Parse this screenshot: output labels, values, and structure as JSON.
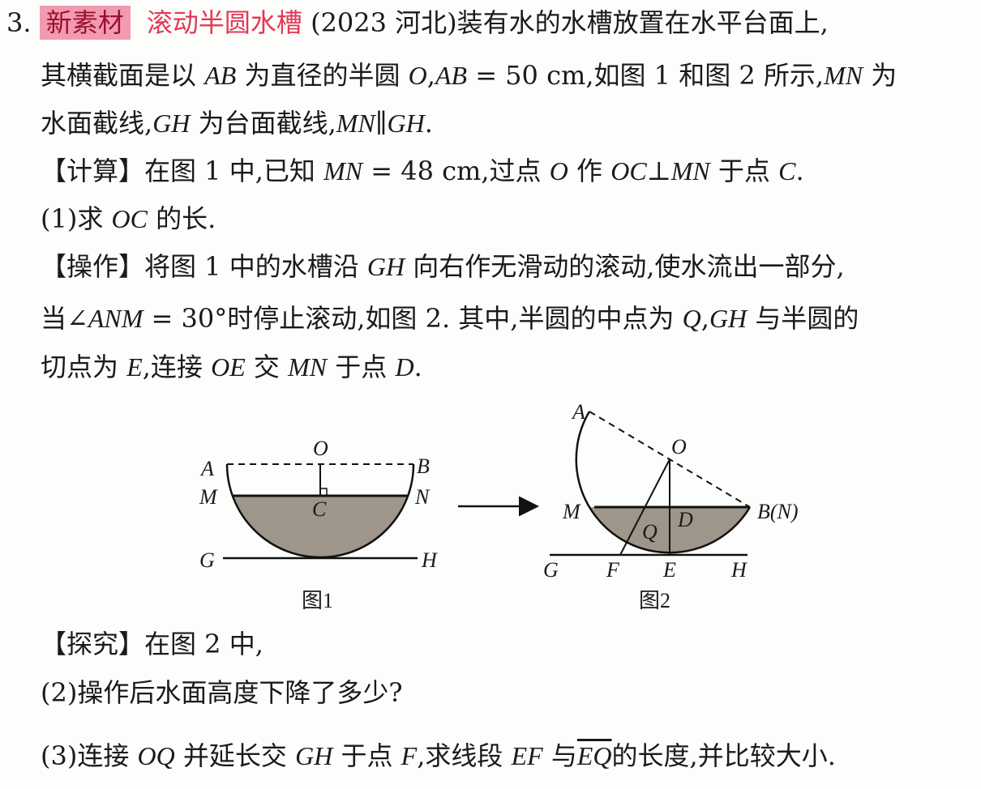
{
  "problem": {
    "number": "3.",
    "tag": "新素材",
    "topic": "滚动半圆水槽",
    "lines": [
      [
        {
          "t": " (2023 河北)装有水的水槽放置在水平台面上,"
        }
      ],
      [
        {
          "t": "其横截面是以 "
        },
        {
          "t": "AB",
          "i": true
        },
        {
          "t": " 为直径的半圆 "
        },
        {
          "t": "O",
          "i": true
        },
        {
          "t": ","
        },
        {
          "t": "AB",
          "i": true
        },
        {
          "t": " = 50 cm,如图 1 和图 2 所示,"
        },
        {
          "t": "MN",
          "i": true
        },
        {
          "t": " 为"
        }
      ],
      [
        {
          "t": "水面截线,"
        },
        {
          "t": "GH",
          "i": true
        },
        {
          "t": " 为台面截线,"
        },
        {
          "t": "MN",
          "i": true
        },
        {
          "t": "∥"
        },
        {
          "t": "GH",
          "i": true
        },
        {
          "t": "."
        }
      ],
      [
        {
          "t": "【计算】在图 1 中,已知 "
        },
        {
          "t": "MN",
          "i": true
        },
        {
          "t": " = 48 cm,过点 "
        },
        {
          "t": "O",
          "i": true
        },
        {
          "t": " 作 "
        },
        {
          "t": "OC",
          "i": true
        },
        {
          "t": "⊥"
        },
        {
          "t": "MN",
          "i": true
        },
        {
          "t": " 于点 "
        },
        {
          "t": "C",
          "i": true
        },
        {
          "t": "."
        }
      ],
      [
        {
          "t": "(1)求 "
        },
        {
          "t": "OC",
          "i": true
        },
        {
          "t": " 的长."
        }
      ],
      [
        {
          "t": "【操作】将图 1 中的水槽沿 "
        },
        {
          "t": "GH",
          "i": true
        },
        {
          "t": " 向右作无滑动的滚动,使水流出一部分,"
        }
      ],
      [
        {
          "t": "当∠"
        },
        {
          "t": "ANM",
          "i": true
        },
        {
          "t": " = 30°时停止滚动,如图 2. 其中,半圆的中点为 "
        },
        {
          "t": "Q",
          "i": true
        },
        {
          "t": ","
        },
        {
          "t": "GH",
          "i": true
        },
        {
          "t": " 与半圆的"
        }
      ],
      [
        {
          "t": "切点为 "
        },
        {
          "t": "E",
          "i": true
        },
        {
          "t": ",连接 "
        },
        {
          "t": "OE",
          "i": true
        },
        {
          "t": " 交 "
        },
        {
          "t": "MN",
          "i": true
        },
        {
          "t": " 于点 "
        },
        {
          "t": "D",
          "i": true
        },
        {
          "t": "."
        }
      ],
      [
        {
          "t": "【探究】在图 2 中,"
        }
      ],
      [
        {
          "t": "(2)操作后水面高度下降了多少?"
        }
      ],
      [
        {
          "t": "(3)连接 "
        },
        {
          "t": "OQ",
          "i": true
        },
        {
          "t": " 并延长交 "
        },
        {
          "t": "GH",
          "i": true
        },
        {
          "t": " 于点 "
        },
        {
          "t": "F",
          "i": true
        },
        {
          "t": ",求线段 "
        },
        {
          "t": "EF",
          "i": true
        },
        {
          "t": " 与"
        },
        {
          "t": "EQ",
          "i": true,
          "arc": true
        },
        {
          "t": "的长度,并比较大小."
        }
      ]
    ]
  },
  "figure1": {
    "caption": "图1",
    "labels": {
      "A": "A",
      "B": "B",
      "O": "O",
      "M": "M",
      "N": "N",
      "C": "C",
      "G": "G",
      "H": "H"
    }
  },
  "figure2": {
    "caption": "图2",
    "labels": {
      "A": "A",
      "O": "O",
      "M": "M",
      "BN": "B(N)",
      "D": "D",
      "Q": "Q",
      "G": "G",
      "F": "F",
      "E": "E",
      "H": "H"
    }
  },
  "colors": {
    "tag_bg": "#f29bb0",
    "topic": "#e03a55",
    "water": "#9e958b"
  }
}
